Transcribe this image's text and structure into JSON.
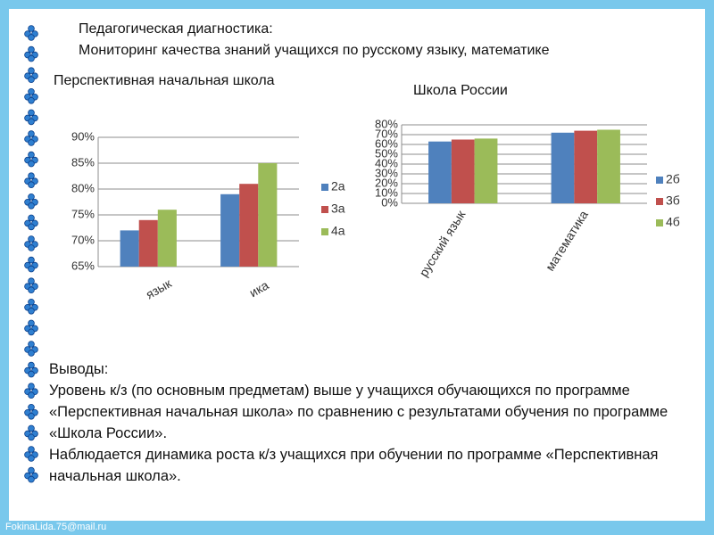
{
  "header": {
    "title": "Педагогическая диагностика:",
    "subtitle": "Мониторинг качества знаний учащихся по русскому языку, математике"
  },
  "chart_data": [
    {
      "type": "bar",
      "title": "Перспективная начальная школа",
      "categories": [
        "язык",
        "ика"
      ],
      "series": [
        {
          "name": "2а",
          "color": "#4f81bd",
          "values": [
            72,
            79
          ]
        },
        {
          "name": "3а",
          "color": "#c0504d",
          "values": [
            74,
            81
          ]
        },
        {
          "name": "4а",
          "color": "#9bbb59",
          "values": [
            76,
            85
          ]
        }
      ],
      "ylim": [
        65,
        90
      ],
      "yticks": [
        {
          "value": 65,
          "label": "65%"
        },
        {
          "value": 70,
          "label": "70%"
        },
        {
          "value": 75,
          "label": "75%"
        },
        {
          "value": 80,
          "label": "80%"
        },
        {
          "value": 85,
          "label": "85%"
        },
        {
          "value": 90,
          "label": "90%"
        }
      ],
      "grid": true,
      "legend": "right"
    },
    {
      "type": "bar",
      "title": "Школа России",
      "categories": [
        "русский язык",
        "математика"
      ],
      "series": [
        {
          "name": "2б",
          "color": "#4f81bd",
          "values": [
            63,
            72
          ]
        },
        {
          "name": "3б",
          "color": "#c0504d",
          "values": [
            65,
            74
          ]
        },
        {
          "name": "4б",
          "color": "#9bbb59",
          "values": [
            66,
            75
          ]
        }
      ],
      "ylim": [
        0,
        80
      ],
      "yticks": [
        {
          "value": 0,
          "label": "0%"
        },
        {
          "value": 10,
          "label": "10%"
        },
        {
          "value": 20,
          "label": "20%"
        },
        {
          "value": 30,
          "label": "30%"
        },
        {
          "value": 40,
          "label": "40%"
        },
        {
          "value": 50,
          "label": "50%"
        },
        {
          "value": 60,
          "label": "60%"
        },
        {
          "value": 70,
          "label": "70%"
        },
        {
          "value": 80,
          "label": "80%"
        }
      ],
      "grid": true,
      "legend": "right"
    }
  ],
  "conclusions": {
    "heading": "Выводы:",
    "paragraphs": [
      "Уровень к/з (по основным предметам) выше у учащихся обучающихся по программе  «Перспективная начальная школа» по сравнению с результатами обучения по программе «Школа России».",
      "Наблюдается динамика роста к/з учащихся при обучении по программе «Перспективная начальная школа»."
    ]
  },
  "footer": {
    "email": "FokinaLida.75@mail.ru"
  }
}
